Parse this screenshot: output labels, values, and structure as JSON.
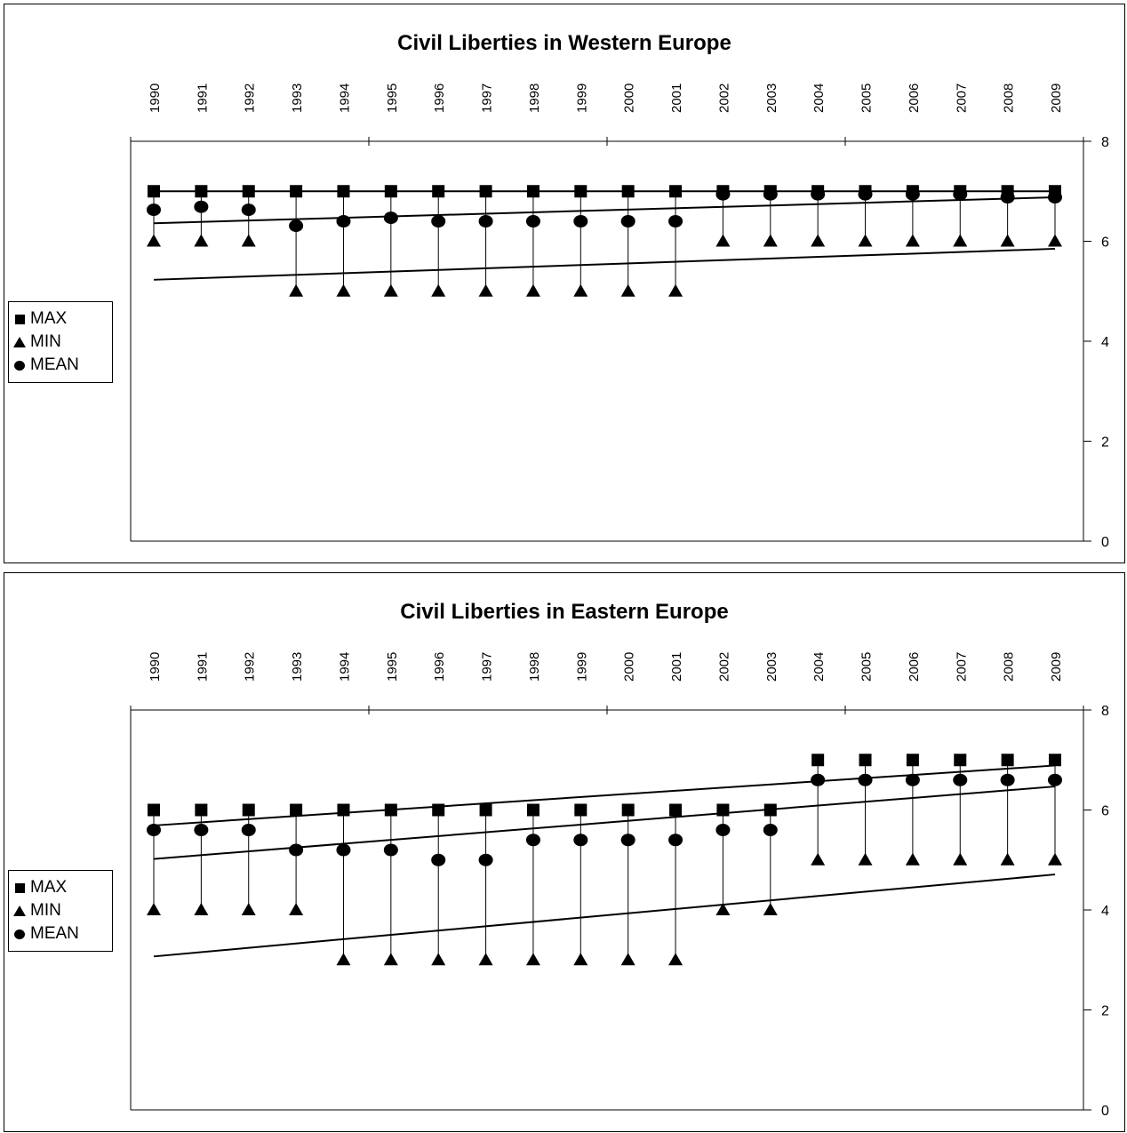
{
  "chart_data": [
    {
      "type": "scatter",
      "title": "Civil Liberties in Western Europe",
      "categories": [
        "1990",
        "1991",
        "1992",
        "1993",
        "1994",
        "1995",
        "1996",
        "1997",
        "1998",
        "1999",
        "2000",
        "2001",
        "2002",
        "2003",
        "2004",
        "2005",
        "2006",
        "2007",
        "2008",
        "2009"
      ],
      "ylim": [
        0,
        8
      ],
      "yticks": [
        "0",
        "2",
        "4",
        "6",
        "8"
      ],
      "legend_position": "left",
      "series": [
        {
          "name": "MAX",
          "marker": "square",
          "values": [
            7,
            7,
            7,
            7,
            7,
            7,
            7,
            7,
            7,
            7,
            7,
            7,
            7,
            7,
            7,
            7,
            7,
            7,
            7,
            7
          ]
        },
        {
          "name": "MIN",
          "marker": "triangle",
          "values": [
            6,
            6,
            6,
            5,
            5,
            5,
            5,
            5,
            5,
            5,
            5,
            5,
            6,
            6,
            6,
            6,
            6,
            6,
            6,
            6
          ]
        },
        {
          "name": "MEAN",
          "marker": "circle",
          "values": [
            6.63,
            6.69,
            6.63,
            6.31,
            6.4,
            6.47,
            6.4,
            6.4,
            6.4,
            6.4,
            6.4,
            6.4,
            6.94,
            6.94,
            6.94,
            6.94,
            6.94,
            6.94,
            6.88,
            6.88
          ]
        }
      ],
      "trendlines": [
        {
          "series": "MAX",
          "start": 7.0,
          "end": 7.0
        },
        {
          "series": "MEAN",
          "start": 6.36,
          "end": 6.88
        },
        {
          "series": "MIN",
          "start": 5.23,
          "end": 5.85
        }
      ]
    },
    {
      "type": "scatter",
      "title": "Civil Liberties in Eastern Europe",
      "categories": [
        "1990",
        "1991",
        "1992",
        "1993",
        "1994",
        "1995",
        "1996",
        "1997",
        "1998",
        "1999",
        "2000",
        "2001",
        "2002",
        "2003",
        "2004",
        "2005",
        "2006",
        "2007",
        "2008",
        "2009"
      ],
      "ylim": [
        0,
        8
      ],
      "yticks": [
        "0",
        "2",
        "4",
        "6",
        "8"
      ],
      "legend_position": "left",
      "series": [
        {
          "name": "MAX",
          "marker": "square",
          "values": [
            6,
            6,
            6,
            6,
            6,
            6,
            6,
            6,
            6,
            6,
            6,
            6,
            6,
            6,
            7,
            7,
            7,
            7,
            7,
            7
          ]
        },
        {
          "name": "MIN",
          "marker": "triangle",
          "values": [
            4,
            4,
            4,
            4,
            3,
            3,
            3,
            3,
            3,
            3,
            3,
            3,
            4,
            4,
            5,
            5,
            5,
            5,
            5,
            5
          ]
        },
        {
          "name": "MEAN",
          "marker": "circle",
          "values": [
            5.6,
            5.6,
            5.6,
            5.2,
            5.2,
            5.2,
            5.0,
            5.0,
            5.4,
            5.4,
            5.4,
            5.4,
            5.6,
            5.6,
            6.6,
            6.6,
            6.6,
            6.6,
            6.6,
            6.6
          ]
        }
      ],
      "trendlines": [
        {
          "series": "MAX",
          "start": 5.69,
          "end": 6.89
        },
        {
          "series": "MEAN",
          "start": 5.02,
          "end": 6.47
        },
        {
          "series": "MIN",
          "start": 3.07,
          "end": 4.71
        }
      ]
    }
  ]
}
